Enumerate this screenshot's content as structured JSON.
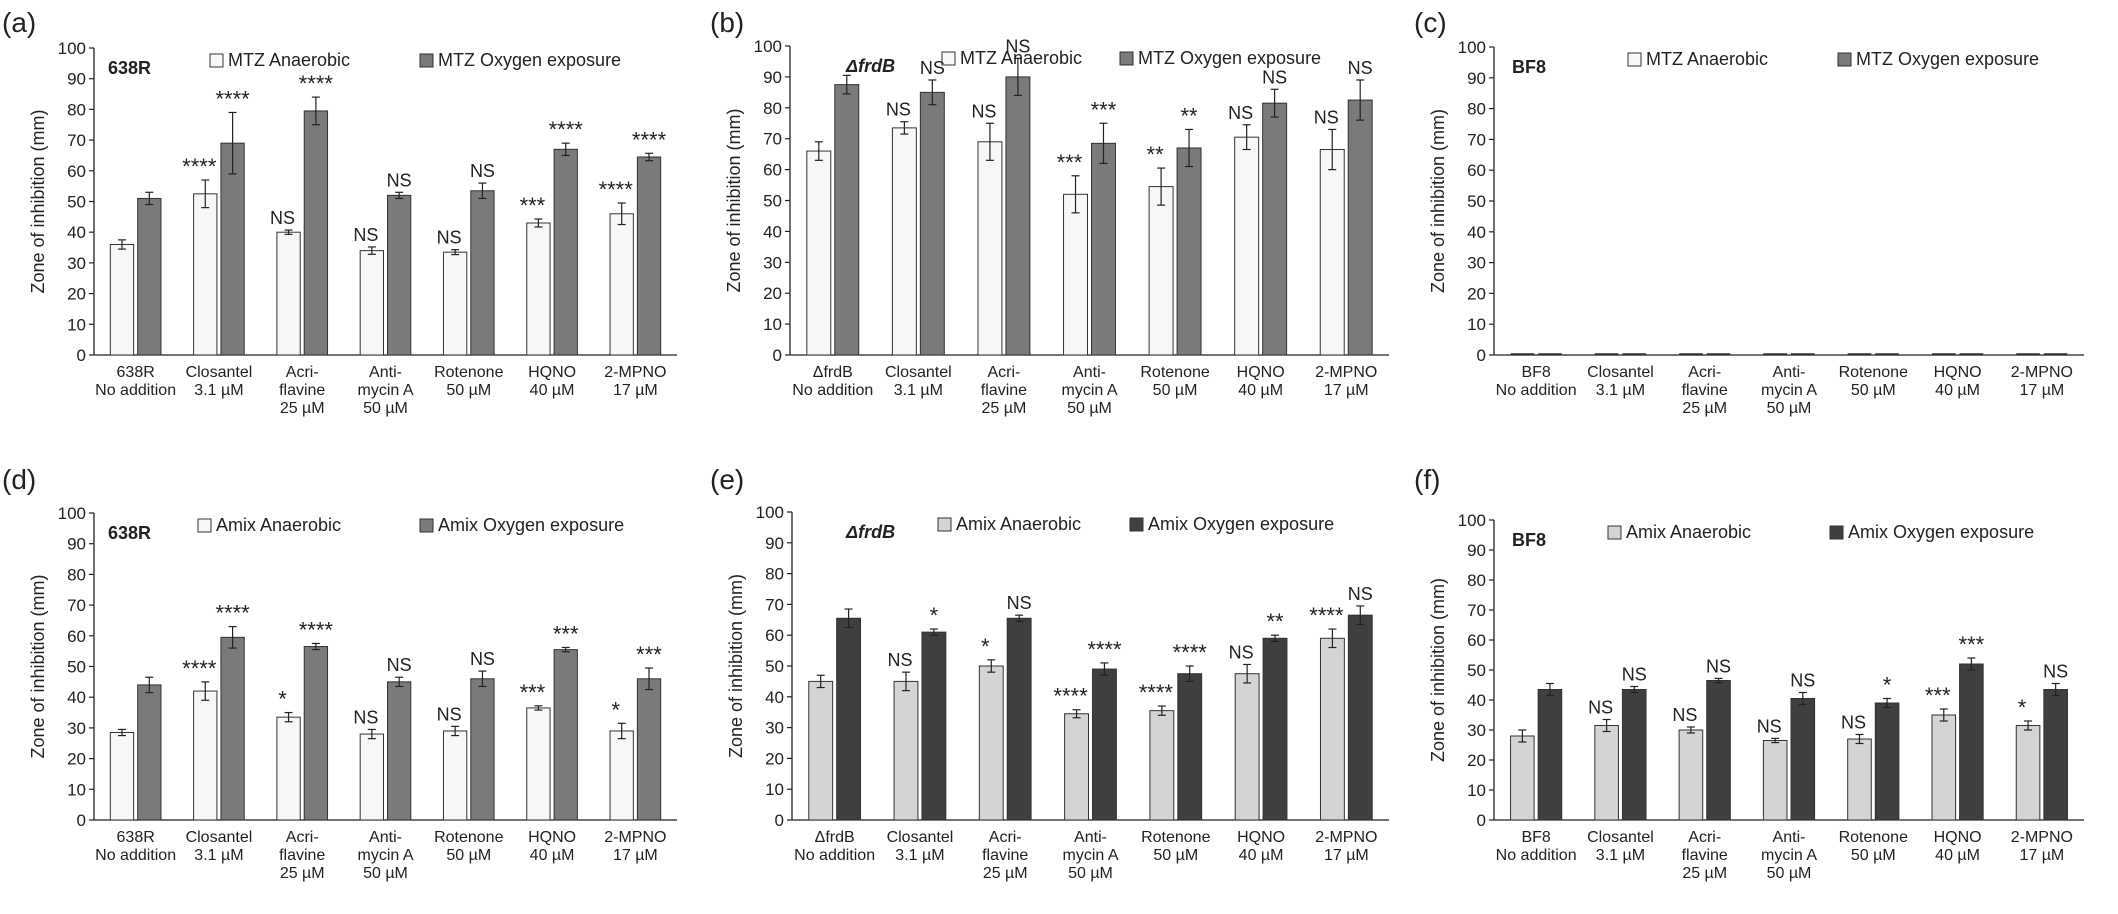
{
  "colors": {
    "mtz_anaerobic": "#f7f7f7",
    "mtz_oxygen": "#7a7a7a",
    "amix_anaerobic": "#d4d4d4",
    "amix_oxygen": "#3f3f3f",
    "axis": "#222222"
  },
  "chart_data": [
    {
      "panel": "(a)",
      "strain": "638R",
      "type": "bar",
      "ylabel": "Zone of inhibition (mm)",
      "ylim": [
        0,
        100
      ],
      "yticks": [
        0,
        10,
        20,
        30,
        40,
        50,
        60,
        70,
        80,
        90,
        100
      ],
      "legend_position": "top",
      "categories": [
        [
          "638R",
          "No addition"
        ],
        [
          "Closantel",
          "3.1 µM"
        ],
        [
          "Acri-",
          "flavine",
          "25 µM"
        ],
        [
          "Anti-",
          "mycin A",
          "50 µM"
        ],
        [
          "Rotenone",
          "50 µM"
        ],
        [
          "HQNO",
          "40 µM"
        ],
        [
          "2-MPNO",
          "17 µM"
        ]
      ],
      "series": [
        {
          "name": "MTZ Anaerobic",
          "color_key": "mtz_anaerobic",
          "values": [
            36,
            52.5,
            40,
            34,
            33.5,
            43,
            46
          ],
          "errors": [
            1.5,
            4.5,
            0.7,
            1.2,
            0.8,
            1.3,
            3.5
          ],
          "labels": [
            "",
            "****",
            "NS",
            "NS",
            "NS",
            "***",
            "****"
          ]
        },
        {
          "name": "MTZ Oxygen exposure",
          "color_key": "mtz_oxygen",
          "values": [
            51,
            69,
            79.5,
            52,
            53.5,
            67,
            64.5
          ],
          "errors": [
            2,
            10,
            4.5,
            1,
            2.5,
            2,
            1.2
          ],
          "labels": [
            "",
            "****",
            "****",
            "NS",
            "NS",
            "****",
            "****"
          ]
        }
      ]
    },
    {
      "panel": "(b)",
      "strain": "ΔfrdB",
      "type": "bar",
      "ylabel": "Zone of inhibition (mm)",
      "ylim": [
        0,
        100
      ],
      "yticks": [
        0,
        10,
        20,
        30,
        40,
        50,
        60,
        70,
        80,
        90,
        100
      ],
      "legend_position": "top",
      "categories": [
        [
          "ΔfrdB",
          "No addition"
        ],
        [
          "Closantel",
          "3.1 µM"
        ],
        [
          "Acri-",
          "flavine",
          "25 µM"
        ],
        [
          "Anti-",
          "mycin A",
          "50 µM"
        ],
        [
          "Rotenone",
          "50 µM"
        ],
        [
          "HQNO",
          "40 µM"
        ],
        [
          "2-MPNO",
          "17 µM"
        ]
      ],
      "series": [
        {
          "name": "MTZ Anaerobic",
          "color_key": "mtz_anaerobic",
          "values": [
            66,
            73.5,
            69,
            52,
            54.5,
            70.5,
            66.5
          ],
          "errors": [
            3,
            2,
            6,
            6,
            6,
            4,
            6.5
          ],
          "labels": [
            "",
            "NS",
            "NS",
            "***",
            "**",
            "NS",
            "NS"
          ]
        },
        {
          "name": "MTZ Oxygen exposure",
          "color_key": "mtz_oxygen",
          "values": [
            87.5,
            85,
            90,
            68.5,
            67,
            81.5,
            82.5
          ],
          "errors": [
            3,
            4,
            6,
            6.5,
            6,
            4.5,
            6.5
          ],
          "labels": [
            "",
            "NS",
            "NS",
            "***",
            "**",
            "NS",
            "NS"
          ]
        }
      ]
    },
    {
      "panel": "(c)",
      "strain": "BF8",
      "type": "bar",
      "ylabel": "Zone of inhibition (mm)",
      "ylim": [
        0,
        100
      ],
      "yticks": [
        0,
        10,
        20,
        30,
        40,
        50,
        60,
        70,
        80,
        90,
        100
      ],
      "legend_position": "top",
      "categories": [
        [
          "BF8",
          "No addition"
        ],
        [
          "Closantel",
          "3.1 µM"
        ],
        [
          "Acri-",
          "flavine",
          "25 µM"
        ],
        [
          "Anti-",
          "mycin A",
          "50 µM"
        ],
        [
          "Rotenone",
          "50 µM"
        ],
        [
          "HQNO",
          "40 µM"
        ],
        [
          "2-MPNO",
          "17 µM"
        ]
      ],
      "series": [
        {
          "name": "MTZ Anaerobic",
          "color_key": "mtz_anaerobic",
          "values": [
            0,
            0,
            0,
            0,
            0,
            0,
            0
          ],
          "errors": [
            0,
            0,
            0,
            0,
            0,
            0,
            0
          ],
          "labels": [
            "",
            "",
            "",
            "",
            "",
            "",
            ""
          ]
        },
        {
          "name": "MTZ Oxygen exposure",
          "color_key": "mtz_oxygen",
          "values": [
            0,
            0,
            0,
            0,
            0,
            0,
            0
          ],
          "errors": [
            0,
            0,
            0,
            0,
            0,
            0,
            0
          ],
          "labels": [
            "",
            "",
            "",
            "",
            "",
            "",
            ""
          ]
        }
      ]
    },
    {
      "panel": "(d)",
      "strain": "638R",
      "type": "bar",
      "ylabel": "Zone of inhibition (mm)",
      "ylim": [
        0,
        100
      ],
      "yticks": [
        0,
        10,
        20,
        30,
        40,
        50,
        60,
        70,
        80,
        90,
        100
      ],
      "legend_position": "top",
      "categories": [
        [
          "638R",
          "No addition"
        ],
        [
          "Closantel",
          "3.1 µM"
        ],
        [
          "Acri-",
          "flavine",
          "25 µM"
        ],
        [
          "Anti-",
          "mycin A",
          "50 µM"
        ],
        [
          "Rotenone",
          "50 µM"
        ],
        [
          "HQNO",
          "40 µM"
        ],
        [
          "2-MPNO",
          "17 µM"
        ]
      ],
      "series": [
        {
          "name": "Amix Anaerobic",
          "color_key": "mtz_anaerobic",
          "values": [
            28.5,
            42,
            33.5,
            28,
            29,
            36.5,
            29
          ],
          "errors": [
            1,
            3,
            1.5,
            1.5,
            1.5,
            0.7,
            2.5
          ],
          "labels": [
            "",
            "****",
            "*",
            "NS",
            "NS",
            "***",
            "*"
          ]
        },
        {
          "name": "Amix Oxygen exposure",
          "color_key": "mtz_oxygen",
          "values": [
            44,
            59.5,
            56.5,
            45,
            46,
            55.5,
            46
          ],
          "errors": [
            2.5,
            3.5,
            1,
            1.5,
            2.5,
            0.7,
            3.5
          ],
          "labels": [
            "",
            "****",
            "****",
            "NS",
            "NS",
            "***",
            "***"
          ]
        }
      ]
    },
    {
      "panel": "(e)",
      "strain": "ΔfrdB",
      "type": "bar",
      "ylabel": "Zone of inhibition (mm)",
      "ylim": [
        0,
        100
      ],
      "yticks": [
        0,
        10,
        20,
        30,
        40,
        50,
        60,
        70,
        80,
        90,
        100
      ],
      "legend_position": "top",
      "categories": [
        [
          "ΔfrdB",
          "No addition"
        ],
        [
          "Closantel",
          "3.1 µM"
        ],
        [
          "Acri-",
          "flavine",
          "25 µM"
        ],
        [
          "Anti-",
          "mycin A",
          "50 µM"
        ],
        [
          "Rotenone",
          "50 µM"
        ],
        [
          "HQNO",
          "40 µM"
        ],
        [
          "2-MPNO",
          "17 µM"
        ]
      ],
      "series": [
        {
          "name": "Amix Anaerobic",
          "color_key": "amix_anaerobic",
          "values": [
            45,
            45,
            50,
            34.5,
            35.5,
            47.5,
            59
          ],
          "errors": [
            2,
            3,
            2,
            1.3,
            1.5,
            3,
            3
          ],
          "labels": [
            "",
            "NS",
            "*",
            "****",
            "****",
            "NS",
            "****"
          ]
        },
        {
          "name": "Amix Oxygen exposure",
          "color_key": "amix_oxygen",
          "values": [
            65.5,
            61,
            65.5,
            49,
            47.5,
            59,
            66.5
          ],
          "errors": [
            3,
            1,
            1,
            2,
            2.5,
            1,
            3
          ],
          "labels": [
            "",
            "*",
            "NS",
            "****",
            "****",
            "**",
            "NS"
          ]
        }
      ]
    },
    {
      "panel": "(f)",
      "strain": "BF8",
      "type": "bar",
      "ylabel": "Zone of inhibition (mm)",
      "ylim": [
        0,
        100
      ],
      "yticks": [
        0,
        10,
        20,
        30,
        40,
        50,
        60,
        70,
        80,
        90,
        100
      ],
      "legend_position": "top",
      "categories": [
        [
          "BF8",
          "No addition"
        ],
        [
          "Closantel",
          "3.1 µM"
        ],
        [
          "Acri-",
          "flavine",
          "25 µM"
        ],
        [
          "Anti-",
          "mycin A",
          "50 µM"
        ],
        [
          "Rotenone",
          "50 µM"
        ],
        [
          "HQNO",
          "40 µM"
        ],
        [
          "2-MPNO",
          "17 µM"
        ]
      ],
      "series": [
        {
          "name": "Amix Anaerobic",
          "color_key": "amix_anaerobic",
          "values": [
            28,
            31.5,
            30,
            26.5,
            27,
            35,
            31.5
          ],
          "errors": [
            2,
            2,
            1,
            0.7,
            1.5,
            2,
            1.5
          ],
          "labels": [
            "",
            "NS",
            "NS",
            "NS",
            "NS",
            "***",
            "*"
          ]
        },
        {
          "name": "Amix Oxygen exposure",
          "color_key": "amix_oxygen",
          "values": [
            43.5,
            43.5,
            46.5,
            40.5,
            39,
            52,
            43.5
          ],
          "errors": [
            2,
            1,
            0.7,
            2,
            1.5,
            2,
            2
          ],
          "labels": [
            "",
            "NS",
            "NS",
            "NS",
            "*",
            "***",
            "NS"
          ]
        }
      ]
    }
  ]
}
